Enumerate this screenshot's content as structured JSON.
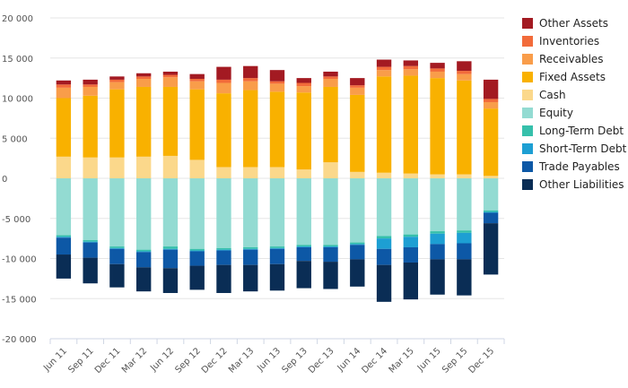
{
  "chart_data": {
    "type": "bar",
    "stacked": true,
    "categories": [
      "Jun 11",
      "Sep 11",
      "Dec 11",
      "Mar 12",
      "Jun 12",
      "Sep 12",
      "Dec 12",
      "Mar 13",
      "Jun 13",
      "Sep 13",
      "Dec 13",
      "Jun 14",
      "Dec 14",
      "Mar 15",
      "Jun 15",
      "Sep 15",
      "Dec 15"
    ],
    "ylim": [
      -20000,
      20000
    ],
    "yticks": [
      -20000,
      -15000,
      -10000,
      -5000,
      0,
      5000,
      10000,
      15000,
      20000
    ],
    "ytick_labels": [
      "-20 000",
      "-15 000",
      "-10 000",
      "-5 000",
      "0",
      "5 000",
      "10 000",
      "15 000",
      "20 000"
    ],
    "legend_position": "right",
    "grid": true,
    "series": [
      {
        "name": "Other Assets",
        "color": "#a31a22",
        "values": [
          500,
          600,
          400,
          400,
          400,
          600,
          1600,
          1500,
          1400,
          600,
          600,
          900,
          900,
          700,
          700,
          1200,
          2400
        ]
      },
      {
        "name": "Inventories",
        "color": "#f26b3a",
        "values": [
          400,
          300,
          300,
          300,
          300,
          300,
          400,
          400,
          300,
          400,
          300,
          300,
          400,
          400,
          400,
          400,
          400
        ]
      },
      {
        "name": "Receivables",
        "color": "#f99d4a",
        "values": [
          1300,
          1100,
          900,
          1000,
          1200,
          1000,
          1300,
          1100,
          1000,
          800,
          1000,
          900,
          800,
          800,
          800,
          800,
          800
        ]
      },
      {
        "name": "Fixed Assets",
        "color": "#f9b100",
        "values": [
          7300,
          7700,
          8500,
          8700,
          8600,
          8800,
          9200,
          9600,
          9400,
          9600,
          9400,
          9600,
          12000,
          12200,
          12000,
          11700,
          8400
        ]
      },
      {
        "name": "Cash",
        "color": "#fbd88b",
        "values": [
          2700,
          2600,
          2600,
          2700,
          2800,
          2300,
          1400,
          1400,
          1400,
          1100,
          2000,
          800,
          700,
          600,
          500,
          500,
          300
        ]
      },
      {
        "name": "Equity",
        "color": "#93dbd2",
        "values": [
          -7100,
          -7700,
          -8500,
          -8900,
          -8500,
          -8800,
          -8700,
          -8600,
          -8500,
          -8300,
          -8300,
          -8000,
          -7200,
          -7000,
          -6600,
          -6500,
          -4000
        ]
      },
      {
        "name": "Long-Term Debt",
        "color": "#36c0ab",
        "values": [
          -200,
          -200,
          -200,
          -200,
          -300,
          -200,
          -200,
          -200,
          -200,
          -200,
          -200,
          -200,
          -300,
          -300,
          -300,
          -300,
          -200
        ]
      },
      {
        "name": "Short-Term Debt",
        "color": "#1d9fd3",
        "values": [
          -100,
          -100,
          -100,
          -100,
          -100,
          -100,
          -100,
          -100,
          -100,
          -100,
          -100,
          -100,
          -1300,
          -1300,
          -1300,
          -1300,
          -100
        ]
      },
      {
        "name": "Trade Payables",
        "color": "#0d58a6",
        "values": [
          -2100,
          -1900,
          -1900,
          -1900,
          -2300,
          -1800,
          -1800,
          -1900,
          -1900,
          -1700,
          -1800,
          -1800,
          -2000,
          -1900,
          -1900,
          -2000,
          -1300
        ]
      },
      {
        "name": "Other Liabilities",
        "color": "#0a2d55",
        "values": [
          -3000,
          -3200,
          -2900,
          -3000,
          -3100,
          -3000,
          -3500,
          -3300,
          -3300,
          -3400,
          -3400,
          -3400,
          -4600,
          -4600,
          -4400,
          -4500,
          -6400
        ]
      }
    ]
  }
}
